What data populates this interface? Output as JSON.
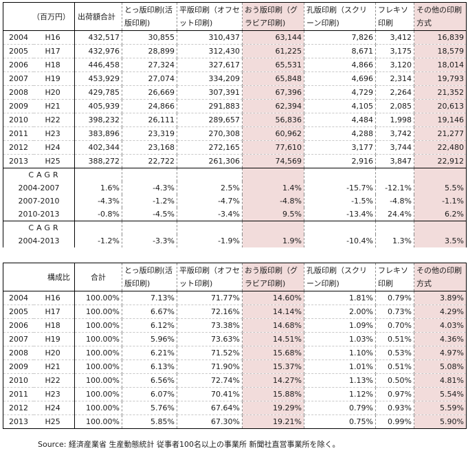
{
  "shipments_table": {
    "headers": {
      "unit": "（百万円）",
      "total": "出荷額合計",
      "letterpress": "とっ版印刷(活版印刷)",
      "offset": "平版印刷（オフセット印刷)",
      "gravure": "おう版印刷（グラビア印刷)",
      "screen": "孔版印刷（スクリーン印刷)",
      "flexo": "フレキソ印刷",
      "other": "その他の印刷方式"
    },
    "rows": [
      {
        "year": "2004",
        "era": "H16",
        "total": "432,517",
        "letterpress": "30,855",
        "offset": "310,437",
        "gravure": "63,144",
        "screen": "7,826",
        "flexo": "3,412",
        "other": "16,839"
      },
      {
        "year": "2005",
        "era": "H17",
        "total": "432,976",
        "letterpress": "28,899",
        "offset": "312,430",
        "gravure": "61,225",
        "screen": "8,671",
        "flexo": "3,175",
        "other": "18,579"
      },
      {
        "year": "2006",
        "era": "H18",
        "total": "446,458",
        "letterpress": "27,324",
        "offset": "327,617",
        "gravure": "65,531",
        "screen": "4,866",
        "flexo": "3,120",
        "other": "18,014"
      },
      {
        "year": "2007",
        "era": "H19",
        "total": "453,929",
        "letterpress": "27,074",
        "offset": "334,209",
        "gravure": "65,848",
        "screen": "4,696",
        "flexo": "2,314",
        "other": "19,793"
      },
      {
        "year": "2008",
        "era": "H20",
        "total": "429,785",
        "letterpress": "26,669",
        "offset": "307,391",
        "gravure": "67,396",
        "screen": "4,729",
        "flexo": "2,264",
        "other": "21,352"
      },
      {
        "year": "2009",
        "era": "H21",
        "total": "405,939",
        "letterpress": "24,866",
        "offset": "291,883",
        "gravure": "62,394",
        "screen": "4,105",
        "flexo": "2,085",
        "other": "20,613"
      },
      {
        "year": "2010",
        "era": "H22",
        "total": "398,232",
        "letterpress": "26,111",
        "offset": "289,657",
        "gravure": "56,836",
        "screen": "4,484",
        "flexo": "1,998",
        "other": "19,146"
      },
      {
        "year": "2011",
        "era": "H23",
        "total": "383,896",
        "letterpress": "23,319",
        "offset": "270,308",
        "gravure": "60,962",
        "screen": "4,288",
        "flexo": "3,742",
        "other": "21,277"
      },
      {
        "year": "2012",
        "era": "H24",
        "total": "402,344",
        "letterpress": "23,168",
        "offset": "272,165",
        "gravure": "77,610",
        "screen": "3,177",
        "flexo": "3,744",
        "other": "22,480"
      },
      {
        "year": "2013",
        "era": "H25",
        "total": "388,272",
        "letterpress": "22,722",
        "offset": "261,306",
        "gravure": "74,569",
        "screen": "2,916",
        "flexo": "3,847",
        "other": "22,912"
      }
    ],
    "cagr_label_1": "CAGR",
    "cagr_rows_1": [
      {
        "range": "2004-2007",
        "total": "1.6%",
        "letterpress": "-4.3%",
        "offset": "2.5%",
        "gravure": "1.4%",
        "screen": "-15.7%",
        "flexo": "-12.1%",
        "other": "5.5%"
      },
      {
        "range": "2007-2010",
        "total": "-4.3%",
        "letterpress": "-1.2%",
        "offset": "-4.7%",
        "gravure": "-4.8%",
        "screen": "-1.5%",
        "flexo": "-4.8%",
        "other": "-1.1%"
      },
      {
        "range": "2010-2013",
        "total": "-0.8%",
        "letterpress": "-4.5%",
        "offset": "-3.4%",
        "gravure": "9.5%",
        "screen": "-13.4%",
        "flexo": "24.4%",
        "other": "6.2%"
      }
    ],
    "cagr_label_2": "CAGR",
    "cagr_rows_2": [
      {
        "range": "2004-2013",
        "total": "-1.2%",
        "letterpress": "-3.3%",
        "offset": "-1.9%",
        "gravure": "1.9%",
        "screen": "-10.4%",
        "flexo": "1.3%",
        "other": "3.5%"
      }
    ]
  },
  "composition_table": {
    "headers": {
      "unit": "構成比",
      "total": "合計",
      "letterpress": "とっ版印刷(活版印刷)",
      "offset": "平版印刷（オフセット印刷)",
      "gravure": "おう版印刷（グラビア印刷)",
      "screen": "孔版印刷（スクリーン印刷)",
      "flexo": "フレキソ印刷",
      "other": "その他の印刷方式"
    },
    "rows": [
      {
        "year": "2004",
        "era": "H16",
        "total": "100.00%",
        "letterpress": "7.13%",
        "offset": "71.77%",
        "gravure": "14.60%",
        "screen": "1.81%",
        "flexo": "0.79%",
        "other": "3.89%"
      },
      {
        "year": "2005",
        "era": "H17",
        "total": "100.00%",
        "letterpress": "6.67%",
        "offset": "72.16%",
        "gravure": "14.14%",
        "screen": "2.00%",
        "flexo": "0.73%",
        "other": "4.29%"
      },
      {
        "year": "2006",
        "era": "H18",
        "total": "100.00%",
        "letterpress": "6.12%",
        "offset": "73.38%",
        "gravure": "14.68%",
        "screen": "1.09%",
        "flexo": "0.70%",
        "other": "4.03%"
      },
      {
        "year": "2007",
        "era": "H19",
        "total": "100.00%",
        "letterpress": "5.96%",
        "offset": "73.63%",
        "gravure": "14.51%",
        "screen": "1.03%",
        "flexo": "0.51%",
        "other": "4.36%"
      },
      {
        "year": "2008",
        "era": "H20",
        "total": "100.00%",
        "letterpress": "6.21%",
        "offset": "71.52%",
        "gravure": "15.68%",
        "screen": "1.10%",
        "flexo": "0.53%",
        "other": "4.97%"
      },
      {
        "year": "2009",
        "era": "H21",
        "total": "100.00%",
        "letterpress": "6.13%",
        "offset": "71.90%",
        "gravure": "15.37%",
        "screen": "1.01%",
        "flexo": "0.51%",
        "other": "5.08%"
      },
      {
        "year": "2010",
        "era": "H22",
        "total": "100.00%",
        "letterpress": "6.56%",
        "offset": "72.74%",
        "gravure": "14.27%",
        "screen": "1.13%",
        "flexo": "0.50%",
        "other": "4.81%"
      },
      {
        "year": "2011",
        "era": "H23",
        "total": "100.00%",
        "letterpress": "6.07%",
        "offset": "70.41%",
        "gravure": "15.88%",
        "screen": "1.12%",
        "flexo": "0.97%",
        "other": "5.54%"
      },
      {
        "year": "2012",
        "era": "H24",
        "total": "100.00%",
        "letterpress": "5.76%",
        "offset": "67.64%",
        "gravure": "19.29%",
        "screen": "0.79%",
        "flexo": "0.93%",
        "other": "5.59%"
      },
      {
        "year": "2013",
        "era": "H25",
        "total": "100.00%",
        "letterpress": "5.85%",
        "offset": "67.30%",
        "gravure": "19.21%",
        "screen": "0.75%",
        "flexo": "0.99%",
        "other": "5.90%"
      }
    ]
  },
  "source_note": "Source: 経済産業省 生産動態統計 従事者100名以上の事業所 新聞社直営事業所を除く。",
  "colors": {
    "highlight": "#f2dcdb",
    "rule": "#000000",
    "dash": "#8a8a8a"
  }
}
